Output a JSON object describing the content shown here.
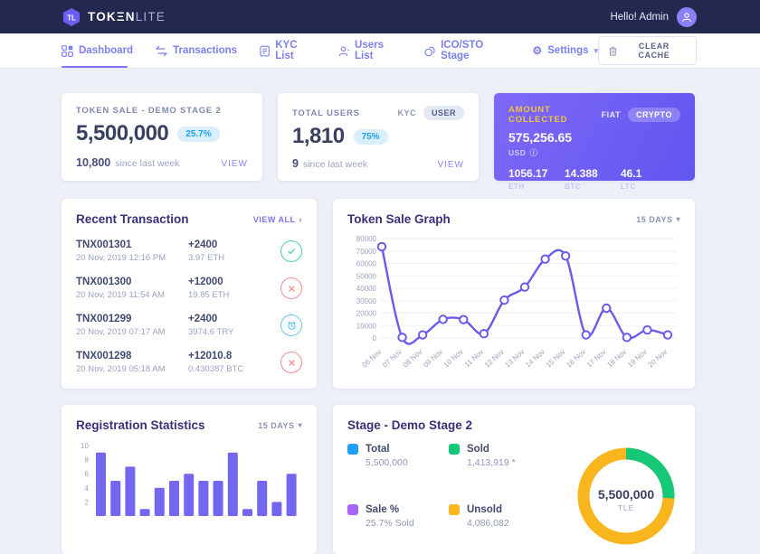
{
  "topbar": {
    "logo_primary": "TOKΞN",
    "logo_secondary": "LITE",
    "greeting": "Hello! Admin"
  },
  "nav": {
    "items": [
      {
        "label": "Dashboard",
        "icon": "dashboard-icon",
        "active": true
      },
      {
        "label": "Transactions",
        "icon": "transactions-icon",
        "active": false
      },
      {
        "label": "KYC List",
        "icon": "kyc-list-icon",
        "active": false
      },
      {
        "label": "Users List",
        "icon": "users-list-icon",
        "active": false
      },
      {
        "label": "ICO/STO Stage",
        "icon": "ico-stage-icon",
        "active": false
      },
      {
        "label": "Settings",
        "icon": "settings-icon",
        "active": false,
        "has_dropdown": true
      }
    ],
    "clear_cache": "CLEAR CACHE"
  },
  "icons": {
    "chevron_down": "▾",
    "arrow_right": "›",
    "info": "ⓘ",
    "gear": "⚙",
    "check": "✓",
    "cross": "✕"
  },
  "stats": {
    "token_sale": {
      "label": "TOKEN SALE - DEMO STAGE 2",
      "value": "5,500,000",
      "badge": "25.7%",
      "delta": "10,800",
      "delta_caption": "since last week",
      "link": "VIEW"
    },
    "total_users": {
      "label": "TOTAL USERS",
      "tab_inactive": "KYC",
      "tab_active": "USER",
      "value": "1,810",
      "badge": "75%",
      "delta": "9",
      "delta_caption": "since last week",
      "link": "VIEW"
    },
    "amount_collected": {
      "label": "AMOUNT COLLECTED",
      "tab_inactive": "FIAT",
      "tab_active": "CRYPTO",
      "value": "575,256.65",
      "currency": "USD",
      "cryptos": [
        {
          "value": "1056.17",
          "label": "ETH"
        },
        {
          "value": "14.388",
          "label": "BTC"
        },
        {
          "value": "46.1",
          "label": "LTC"
        }
      ]
    }
  },
  "transactions": {
    "title": "Recent Transaction",
    "view_all": "VIEW ALL",
    "rows": [
      {
        "id": "TNX001301",
        "date": "20 Nov, 2019 12:16 PM",
        "amount": "+2400",
        "converted": "3.97 ETH",
        "status": "success"
      },
      {
        "id": "TNX001300",
        "date": "20 Nov, 2019 11:54 AM",
        "amount": "+12000",
        "converted": "19.85 ETH",
        "status": "failed"
      },
      {
        "id": "TNX001299",
        "date": "20 Nov, 2019 07:17 AM",
        "amount": "+2400",
        "converted": "3974.6 TRY",
        "status": "pending"
      },
      {
        "id": "TNX001298",
        "date": "20 Nov, 2019 05:18 AM",
        "amount": "+12010.8",
        "converted": "0.430387 BTC",
        "status": "failed"
      }
    ]
  },
  "token_sale_graph": {
    "title": "Token Sale Graph",
    "range": "15 DAYS"
  },
  "registration_stats": {
    "title": "Registration Statistics",
    "range": "15 DAYS"
  },
  "stage": {
    "title": "Stage - Demo Stage 2",
    "legend": [
      {
        "label": "Total",
        "value": "5,500,000",
        "color": "#1e9ff2"
      },
      {
        "label": "Sold",
        "value": "1,413,919 *",
        "color": "#14c878"
      },
      {
        "label": "Sale %",
        "value": "25.7% Sold",
        "color": "#a665f5"
      },
      {
        "label": "Unsold",
        "value": "4,086,082",
        "color": "#f8b51d"
      }
    ],
    "center_value": "5,500,000",
    "center_unit": "TLE"
  },
  "chart_data": [
    {
      "type": "line",
      "title": "Token Sale Graph",
      "x": [
        "06 Nov",
        "07 Nov",
        "08 Nov",
        "09 Nov",
        "10 Nov",
        "11 Nov",
        "12 Nov",
        "13 Nov",
        "14 Nov",
        "15 Nov",
        "16 Nov",
        "17 Nov",
        "18 Nov",
        "19 Nov",
        "20 Nov"
      ],
      "values": [
        73500,
        500,
        2500,
        15000,
        14800,
        3500,
        30500,
        41000,
        63500,
        66000,
        2500,
        24000,
        500,
        6500,
        2500
      ],
      "ylim": [
        0,
        80000
      ],
      "ytick_step": 10000,
      "line_color": "#6a5cea",
      "grid": true,
      "legend_position": "none"
    },
    {
      "type": "bar",
      "title": "Registration Statistics",
      "values": [
        9,
        5,
        7,
        1,
        4,
        5,
        6,
        5,
        5,
        9,
        1,
        5,
        2,
        6
      ],
      "ylim": [
        0,
        10
      ],
      "yticks": [
        2,
        4,
        6,
        8,
        10
      ],
      "bar_color": "#7367f0",
      "grid": false
    },
    {
      "type": "donut",
      "title": "Stage - Demo Stage 2",
      "slices": [
        {
          "label": "Sold",
          "value": 1413919,
          "color": "#14c878"
        },
        {
          "label": "Unsold",
          "value": 4086082,
          "color": "#f8b51d"
        }
      ],
      "center_label": "5,500,000",
      "center_unit": "TLE"
    }
  ]
}
